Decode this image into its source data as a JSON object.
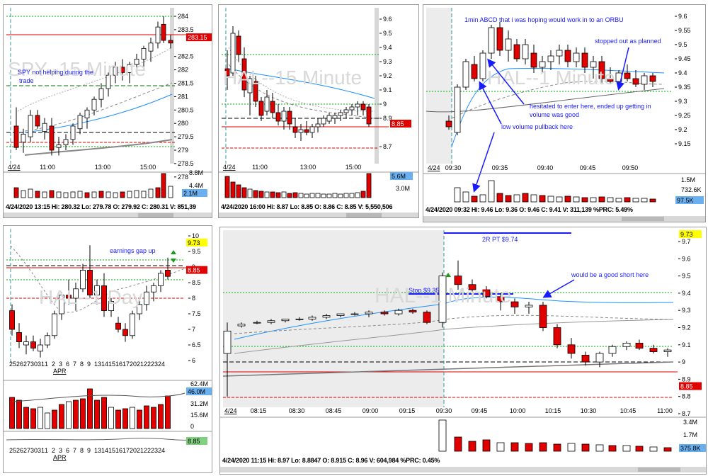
{
  "colors": {
    "up": "#ffffff",
    "down": "#e00000",
    "grid": "#00b000",
    "price_line": "#e00000",
    "vwap": "#1e90ff",
    "ma": "#808080",
    "annotation": "#1a1aff",
    "label_blue": "#6ab0f0",
    "label_red": "#e00000",
    "label_yellow": "#ffff00"
  },
  "p1": {
    "watermark": "SPY--15 Minute",
    "date_tab": "4/24",
    "time_labels": [
      "11:00",
      "13:00",
      "15:00"
    ],
    "price_ticks": [
      "284",
      "283.5",
      "283.15",
      "282.5",
      "282",
      "281.5",
      "281",
      "280.5",
      "280",
      "279.5",
      "279",
      "278.5",
      "278"
    ],
    "current_price": "283.15",
    "annotation": "SPY not helping during the trade",
    "vol_ticks": [
      "8.8M",
      "4.4M",
      "2.1M"
    ],
    "vol_label": "2.1M",
    "info": "4/24/2020 13:15  Hi: 280.32  Lo: 279.78  O: 279.92  C: 280.31  V: 851,39"
  },
  "p2": {
    "watermark": "HAL--15 Minute",
    "date_tab": "4/24",
    "time_labels": [
      "11:00",
      "13:00",
      "15:00"
    ],
    "price_ticks": [
      "9.6",
      "9.5",
      "9.4",
      "9.3",
      "9.2",
      "9.1",
      "9",
      "8.9",
      "8.85",
      "8.7"
    ],
    "current_price": "8.85",
    "vol_ticks": [
      "5.6M",
      "3.0M"
    ],
    "vol_label": "5.6M",
    "info": "4/24/2020 16:00  Hi: 8.87  Lo: 8.85  O: 8.86  C: 8.85  V: 5,550,506"
  },
  "p3": {
    "watermark": "HAL--1 Minute",
    "date_tab": "4/24",
    "time_labels": [
      "09:30",
      "09:35",
      "09:40",
      "09:45",
      "09:50"
    ],
    "price_ticks": [
      "9.6",
      "9.55",
      "9.5",
      "9.45",
      "9.4",
      "9.35",
      "9.3",
      "9.25",
      "9.2",
      "9.15"
    ],
    "annotations": {
      "abcd": "1min ABCD that i was hoping would work in to an ORBU",
      "stopped": "stopped out as planned",
      "hesitated": "hesitated to enter here, ended up getting in volume was good",
      "lowvol": "low volume pullback here"
    },
    "vol_ticks": [
      "1.5M",
      "732.6K",
      "97.5K"
    ],
    "vol_label": "97.5K",
    "info": "4/24/2020 09:32  Hi: 9.46  Lo: 9.36  O: 9.46  C: 9.41  V: 311,139  %PRC: 5.49%"
  },
  "p4": {
    "watermark": "HAL--1 Day",
    "date_labels": [
      "25",
      "26",
      "27",
      "30",
      "31",
      "1",
      "2",
      "3",
      "6",
      "7",
      "8",
      "9",
      "13",
      "14",
      "15",
      "16",
      "17",
      "20",
      "21",
      "22",
      "23",
      "24"
    ],
    "month_labels": [
      "APR"
    ],
    "price_ticks": [
      "10",
      "9.73",
      "9.5",
      "9",
      "8.85",
      "8.5",
      "8",
      "7.5",
      "7",
      "6.5",
      "6"
    ],
    "high_label": "9.73",
    "current_price": "8.85",
    "annotation": "earnings gap up",
    "vol_ticks": [
      "62.4M",
      "46.0M",
      "31.2M",
      "15.6M",
      "0"
    ],
    "vol_label": "46.0M",
    "sub_label": "8.85",
    "sub_dates": [
      "25",
      "26",
      "27",
      "30",
      "31",
      "1",
      "2",
      "3",
      "6",
      "7",
      "8",
      "9",
      "13",
      "14",
      "15",
      "16",
      "17",
      "20",
      "21",
      "22",
      "23",
      "24"
    ],
    "sub_month": "APR"
  },
  "p5": {
    "watermark": "HAL--1 Minute",
    "date_tab": "4/24",
    "time_labels": [
      "08:15",
      "08:30",
      "08:45",
      "09:00",
      "09:15",
      "09:30",
      "09:45",
      "10:00",
      "10:15",
      "10:30",
      "10:45",
      "11:00"
    ],
    "price_ticks": [
      "9.73",
      "9.7",
      "9.6",
      "9.5",
      "9.4",
      "9.3",
      "9.2",
      "9.1",
      "9",
      "8.9",
      "8.85",
      "8.8",
      "8.7"
    ],
    "high_label": "9.73",
    "current_price": "8.85",
    "annotations": {
      "pt": "2R PT $9.74",
      "stop": "Stop $9.35",
      "short": "would be a good short here"
    },
    "vol_ticks": [
      "3.4M",
      "1.7M",
      "375.8K"
    ],
    "vol_label": "375.8K",
    "info": "4/24/2020 11:15  Hi: 8.97  Lo: 8.8847  O: 8.915  C: 8.96  V: 604,984  %PRC: 0.45%"
  }
}
